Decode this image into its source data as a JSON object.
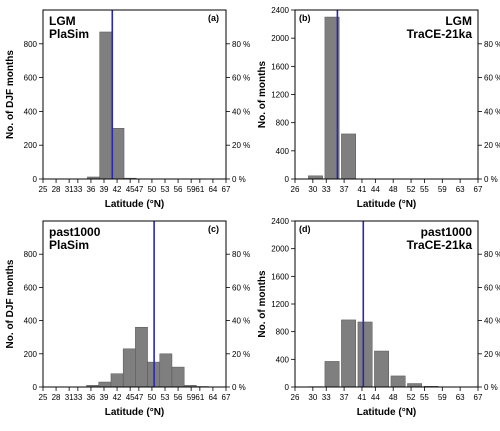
{
  "chart_data": [
    {
      "type": "bar",
      "panel": "(a)",
      "label_lines": [
        "LGM",
        "PlaSim"
      ],
      "label_align": "left",
      "xlabel": "Latitude (°N)",
      "ylabel": "No. of DJF months",
      "ylim": [
        0,
        1000
      ],
      "yticks": [
        0,
        200,
        400,
        600,
        800
      ],
      "y2ticks": [
        "0 %",
        "20 %",
        "40 %",
        "60 %",
        "80 %"
      ],
      "xlim": [
        25,
        67
      ],
      "xticks": [
        25,
        28,
        31,
        33,
        36,
        39,
        42,
        45,
        47,
        50,
        53,
        56,
        59,
        61,
        64,
        67
      ],
      "bar_width": 2.8,
      "x": [
        36.6,
        39.4,
        42.2,
        45.0
      ],
      "values": [
        12,
        870,
        300,
        5
      ],
      "vline": 40.9,
      "colors": {
        "bar": "#7f7f7f",
        "vline": "#2828b4"
      }
    },
    {
      "type": "bar",
      "panel": "(b)",
      "label_lines": [
        "LGM",
        "TraCE-21ka"
      ],
      "label_align": "right",
      "xlabel": "Latitude (°N)",
      "ylabel": "No. of months",
      "ylim": [
        0,
        2400
      ],
      "yticks": [
        0,
        400,
        800,
        1200,
        1600,
        2000,
        2400
      ],
      "y2ticks": [
        "0 %",
        "20 %",
        "40 %",
        "60 %",
        "80 %"
      ],
      "xlim": [
        26,
        67
      ],
      "xticks": [
        26,
        30,
        33,
        37,
        41,
        44,
        48,
        52,
        55,
        59,
        63,
        67
      ],
      "bar_width": 3.2,
      "x": [
        30.6,
        34.3,
        38.0
      ],
      "values": [
        45,
        2300,
        640
      ],
      "vline": 35.5,
      "colors": {
        "bar": "#7f7f7f",
        "vline": "#2828b4"
      }
    },
    {
      "type": "bar",
      "panel": "(c)",
      "label_lines": [
        "past1000",
        "PlaSim"
      ],
      "label_align": "left",
      "xlabel": "Latitude (°N)",
      "ylabel": "No. of DJF months",
      "ylim": [
        0,
        1000
      ],
      "yticks": [
        0,
        200,
        400,
        600,
        800
      ],
      "y2ticks": [
        "0 %",
        "20 %",
        "40 %",
        "60 %",
        "80 %"
      ],
      "xlim": [
        25,
        67
      ],
      "xticks": [
        25,
        28,
        31,
        33,
        36,
        39,
        42,
        45,
        47,
        50,
        53,
        56,
        59,
        61,
        64,
        67
      ],
      "bar_width": 2.8,
      "x": [
        36.4,
        39.2,
        42.0,
        44.8,
        47.6,
        50.4,
        53.2,
        56.0,
        58.8,
        61.6
      ],
      "values": [
        10,
        30,
        80,
        230,
        360,
        150,
        200,
        120,
        10,
        3
      ],
      "vline": 50.5,
      "colors": {
        "bar": "#7f7f7f",
        "vline": "#2828b4"
      }
    },
    {
      "type": "bar",
      "panel": "(d)",
      "label_lines": [
        "past1000",
        "TraCE-21ka"
      ],
      "label_align": "right",
      "xlabel": "Latitude (°N)",
      "ylabel": "No. of months",
      "ylim": [
        0,
        2400
      ],
      "yticks": [
        0,
        400,
        800,
        1200,
        1600,
        2000,
        2400
      ],
      "y2ticks": [
        "0 %",
        "20 %",
        "40 %",
        "60 %",
        "80 %"
      ],
      "xlim": [
        26,
        67
      ],
      "xticks": [
        26,
        30,
        33,
        37,
        41,
        44,
        48,
        52,
        55,
        59,
        63,
        67
      ],
      "bar_width": 3.2,
      "x": [
        30.6,
        34.3,
        38.0,
        41.7,
        45.4,
        49.1,
        52.8,
        56.5
      ],
      "values": [
        5,
        370,
        970,
        940,
        520,
        160,
        50,
        10
      ],
      "vline": 41.3,
      "colors": {
        "bar": "#7f7f7f",
        "vline": "#2828b4"
      }
    }
  ]
}
